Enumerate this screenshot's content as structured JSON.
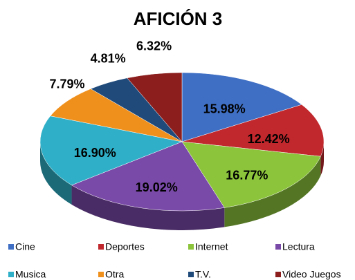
{
  "chart_data": {
    "type": "pie",
    "title": "AFICIÓN 3",
    "categories": [
      "Cine",
      "Deportes",
      "Internet",
      "Lectura",
      "Musica",
      "Otra",
      "T.V.",
      "Video Juegos"
    ],
    "values": [
      15.98,
      12.42,
      16.77,
      19.02,
      16.9,
      7.79,
      4.81,
      6.32
    ],
    "value_labels": [
      "15.98%",
      "12.42%",
      "16.77%",
      "19.02%",
      "16.90%",
      "7.79%",
      "4.81%",
      "6.32%"
    ],
    "colors": [
      "#3f6fc4",
      "#c0282d",
      "#8cc43c",
      "#7a4aa8",
      "#2fb0c8",
      "#f0901c",
      "#1f4a7a",
      "#8c1e1e"
    ],
    "legend": "bottom"
  }
}
